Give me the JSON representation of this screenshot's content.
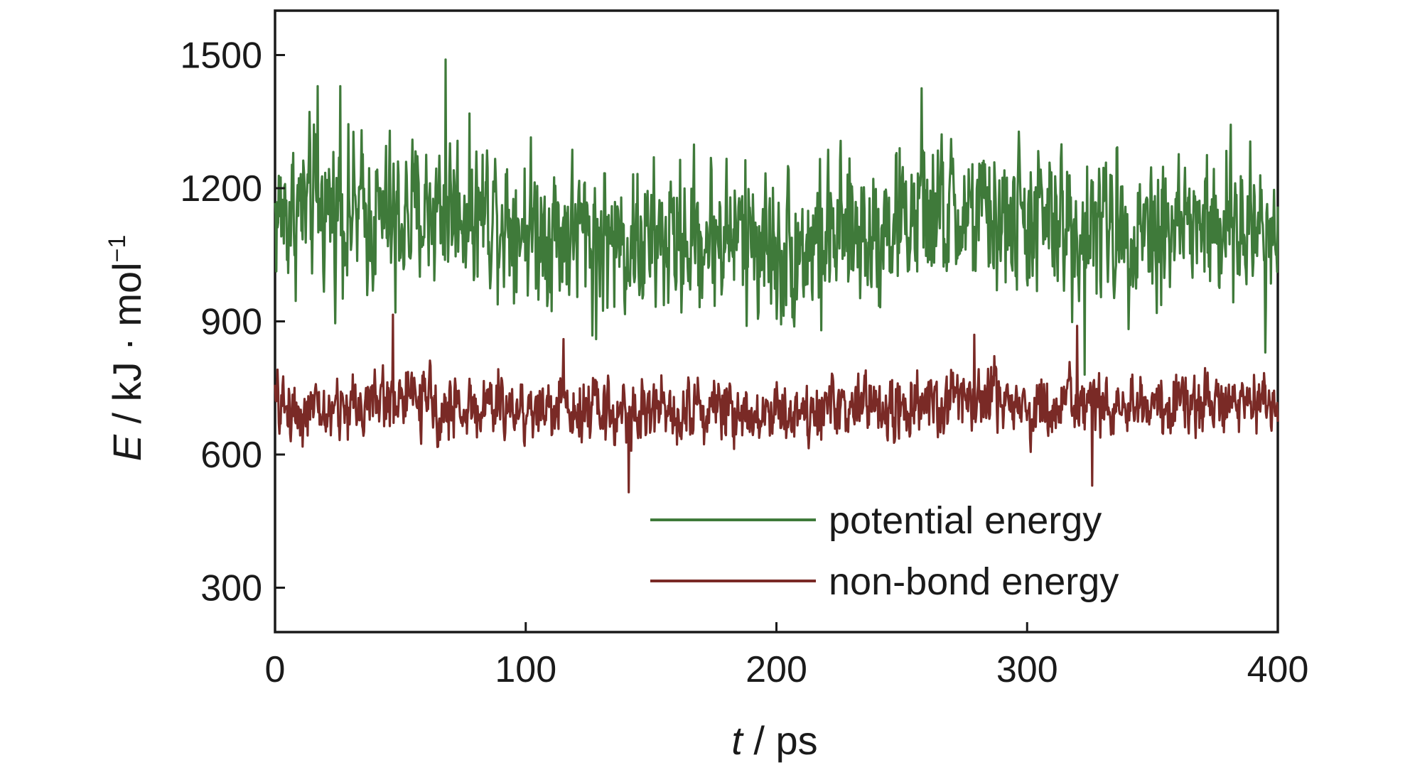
{
  "chart_data": {
    "type": "line",
    "xlabel_var": "t",
    "xlabel_unit": " / ps",
    "ylabel_var": "E",
    "ylabel_unit": " / kJ · mol",
    "ylabel_sup": "−1",
    "xlim": [
      0,
      400
    ],
    "ylim": [
      200,
      1600
    ],
    "x_ticks": [
      0,
      100,
      200,
      300,
      400
    ],
    "y_ticks": [
      300,
      600,
      900,
      1200,
      1500
    ],
    "grid": false,
    "legend_position": "bottom-center",
    "series": [
      {
        "name": "potential energy",
        "color": "#3f7a3a",
        "x": [
          0,
          10,
          20,
          30,
          40,
          50,
          60,
          70,
          80,
          90,
          100,
          110,
          120,
          130,
          140,
          150,
          160,
          170,
          180,
          190,
          200,
          210,
          220,
          230,
          240,
          250,
          260,
          270,
          280,
          290,
          300,
          310,
          320,
          330,
          340,
          350,
          360,
          370,
          380,
          390,
          400
        ],
        "mean": [
          1140,
          1150,
          1160,
          1145,
          1135,
          1130,
          1150,
          1160,
          1155,
          1150,
          1120,
          1110,
          1100,
          1090,
          1080,
          1075,
          1085,
          1090,
          1095,
          1100,
          1060,
          1070,
          1085,
          1095,
          1110,
          1130,
          1140,
          1135,
          1130,
          1125,
          1130,
          1120,
          1110,
          1110,
          1115,
          1120,
          1120,
          1110,
          1105,
          1115,
          1110
        ],
        "spread": 120,
        "spikes": [
          [
            17,
            1430
          ],
          [
            26,
            1430
          ],
          [
            68,
            1490
          ],
          [
            258,
            1425
          ],
          [
            48,
            920
          ],
          [
            323,
            780
          ],
          [
            395,
            830
          ],
          [
            128,
            860
          ],
          [
            218,
            880
          ],
          [
            188,
            890
          ]
        ]
      },
      {
        "name": "non-bond energy",
        "color": "#7a2a26",
        "x": [
          0,
          10,
          20,
          30,
          40,
          50,
          60,
          70,
          80,
          90,
          100,
          110,
          120,
          130,
          140,
          150,
          160,
          170,
          180,
          190,
          200,
          210,
          220,
          230,
          240,
          250,
          260,
          270,
          280,
          290,
          300,
          310,
          320,
          330,
          340,
          350,
          360,
          370,
          380,
          390,
          400
        ],
        "mean": [
          710,
          700,
          690,
          710,
          720,
          730,
          715,
          700,
          705,
          710,
          700,
          705,
          715,
          700,
          690,
          700,
          705,
          710,
          700,
          695,
          700,
          695,
          705,
          710,
          705,
          700,
          705,
          720,
          740,
          720,
          705,
          700,
          705,
          710,
          705,
          700,
          705,
          715,
          720,
          715,
          710
        ],
        "spread": 50,
        "spikes": [
          [
            47,
            915
          ],
          [
            115,
            860
          ],
          [
            141,
            515
          ],
          [
            320,
            890
          ],
          [
            326,
            530
          ],
          [
            279,
            870
          ]
        ]
      }
    ]
  }
}
